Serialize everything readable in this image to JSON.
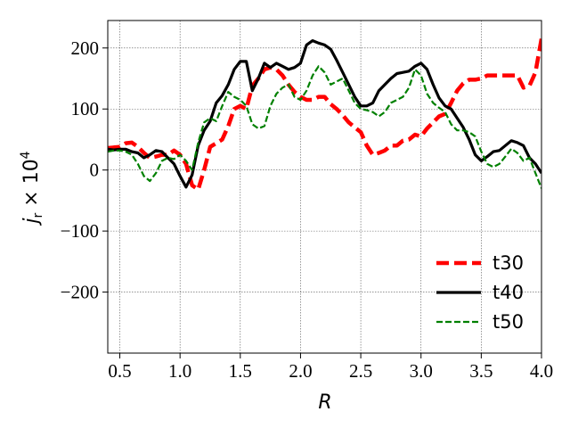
{
  "chart_data": {
    "type": "line",
    "title": "",
    "xlabel": "R",
    "ylabel": "j_r × 10^4",
    "xlim": [
      0.4,
      4.0
    ],
    "ylim": [
      -300,
      245
    ],
    "xticks": [
      0.5,
      1.0,
      1.5,
      2.0,
      2.5,
      3.0,
      3.5,
      4.0
    ],
    "xtick_labels": [
      "0.5",
      "1.0",
      "1.5",
      "2.0",
      "2.5",
      "3.0",
      "3.5",
      "4.0"
    ],
    "yticks": [
      -200,
      -100,
      0,
      100,
      200
    ],
    "ytick_labels": [
      "−200",
      "−100",
      "0",
      "100",
      "200"
    ],
    "grid": true,
    "legend_position": "bottom-right",
    "series": [
      {
        "name": "t30",
        "color": "#ff0000",
        "style": "dashed-thick",
        "points": [
          [
            0.4,
            36
          ],
          [
            0.5,
            38
          ],
          [
            0.55,
            44
          ],
          [
            0.6,
            45
          ],
          [
            0.65,
            38
          ],
          [
            0.7,
            28
          ],
          [
            0.75,
            20
          ],
          [
            0.8,
            22
          ],
          [
            0.85,
            25
          ],
          [
            0.9,
            25
          ],
          [
            0.95,
            32
          ],
          [
            1.0,
            25
          ],
          [
            1.05,
            10
          ],
          [
            1.1,
            -25
          ],
          [
            1.15,
            -32
          ],
          [
            1.2,
            0
          ],
          [
            1.25,
            38
          ],
          [
            1.3,
            44
          ],
          [
            1.35,
            50
          ],
          [
            1.4,
            72
          ],
          [
            1.45,
            100
          ],
          [
            1.5,
            105
          ],
          [
            1.55,
            100
          ],
          [
            1.6,
            138
          ],
          [
            1.65,
            150
          ],
          [
            1.7,
            165
          ],
          [
            1.75,
            168
          ],
          [
            1.8,
            165
          ],
          [
            1.85,
            155
          ],
          [
            1.9,
            140
          ],
          [
            1.95,
            128
          ],
          [
            2.0,
            120
          ],
          [
            2.05,
            115
          ],
          [
            2.1,
            115
          ],
          [
            2.15,
            120
          ],
          [
            2.2,
            120
          ],
          [
            2.25,
            108
          ],
          [
            2.3,
            100
          ],
          [
            2.35,
            90
          ],
          [
            2.4,
            78
          ],
          [
            2.45,
            70
          ],
          [
            2.5,
            62
          ],
          [
            2.55,
            40
          ],
          [
            2.6,
            25
          ],
          [
            2.65,
            28
          ],
          [
            2.7,
            32
          ],
          [
            2.75,
            40
          ],
          [
            2.8,
            40
          ],
          [
            2.85,
            48
          ],
          [
            2.9,
            50
          ],
          [
            2.95,
            58
          ],
          [
            3.0,
            55
          ],
          [
            3.05,
            68
          ],
          [
            3.1,
            78
          ],
          [
            3.15,
            88
          ],
          [
            3.2,
            92
          ],
          [
            3.25,
            110
          ],
          [
            3.3,
            130
          ],
          [
            3.35,
            142
          ],
          [
            3.4,
            148
          ],
          [
            3.45,
            148
          ],
          [
            3.5,
            150
          ],
          [
            3.55,
            155
          ],
          [
            3.6,
            155
          ],
          [
            3.65,
            155
          ],
          [
            3.7,
            155
          ],
          [
            3.75,
            155
          ],
          [
            3.8,
            155
          ],
          [
            3.85,
            135
          ],
          [
            3.9,
            138
          ],
          [
            3.95,
            160
          ],
          [
            4.0,
            215
          ]
        ]
      },
      {
        "name": "t40",
        "color": "#000000",
        "style": "solid-thick",
        "points": [
          [
            0.4,
            34
          ],
          [
            0.45,
            33
          ],
          [
            0.5,
            34
          ],
          [
            0.55,
            34
          ],
          [
            0.6,
            30
          ],
          [
            0.65,
            28
          ],
          [
            0.7,
            20
          ],
          [
            0.75,
            25
          ],
          [
            0.8,
            32
          ],
          [
            0.85,
            30
          ],
          [
            0.9,
            20
          ],
          [
            0.95,
            10
          ],
          [
            1.0,
            -10
          ],
          [
            1.05,
            -28
          ],
          [
            1.1,
            -8
          ],
          [
            1.15,
            40
          ],
          [
            1.2,
            65
          ],
          [
            1.25,
            80
          ],
          [
            1.3,
            110
          ],
          [
            1.35,
            122
          ],
          [
            1.4,
            140
          ],
          [
            1.45,
            165
          ],
          [
            1.5,
            178
          ],
          [
            1.55,
            178
          ],
          [
            1.6,
            130
          ],
          [
            1.65,
            150
          ],
          [
            1.7,
            175
          ],
          [
            1.75,
            168
          ],
          [
            1.8,
            175
          ],
          [
            1.85,
            170
          ],
          [
            1.9,
            165
          ],
          [
            1.95,
            168
          ],
          [
            2.0,
            175
          ],
          [
            2.05,
            205
          ],
          [
            2.1,
            212
          ],
          [
            2.15,
            208
          ],
          [
            2.2,
            205
          ],
          [
            2.25,
            198
          ],
          [
            2.3,
            180
          ],
          [
            2.35,
            160
          ],
          [
            2.4,
            140
          ],
          [
            2.45,
            120
          ],
          [
            2.5,
            105
          ],
          [
            2.55,
            105
          ],
          [
            2.6,
            110
          ],
          [
            2.65,
            130
          ],
          [
            2.7,
            140
          ],
          [
            2.75,
            150
          ],
          [
            2.8,
            158
          ],
          [
            2.85,
            160
          ],
          [
            2.9,
            162
          ],
          [
            2.95,
            170
          ],
          [
            3.0,
            175
          ],
          [
            3.05,
            165
          ],
          [
            3.1,
            140
          ],
          [
            3.15,
            118
          ],
          [
            3.2,
            105
          ],
          [
            3.25,
            100
          ],
          [
            3.3,
            85
          ],
          [
            3.35,
            70
          ],
          [
            3.4,
            50
          ],
          [
            3.45,
            25
          ],
          [
            3.5,
            15
          ],
          [
            3.55,
            22
          ],
          [
            3.6,
            30
          ],
          [
            3.65,
            32
          ],
          [
            3.7,
            40
          ],
          [
            3.75,
            48
          ],
          [
            3.8,
            45
          ],
          [
            3.85,
            40
          ],
          [
            3.9,
            20
          ],
          [
            3.95,
            10
          ],
          [
            4.0,
            -5
          ]
        ]
      },
      {
        "name": "t50",
        "color": "#008000",
        "style": "dashed",
        "points": [
          [
            0.4,
            30
          ],
          [
            0.45,
            32
          ],
          [
            0.5,
            32
          ],
          [
            0.55,
            30
          ],
          [
            0.6,
            25
          ],
          [
            0.65,
            10
          ],
          [
            0.7,
            -10
          ],
          [
            0.75,
            -18
          ],
          [
            0.8,
            -5
          ],
          [
            0.85,
            15
          ],
          [
            0.9,
            20
          ],
          [
            0.95,
            18
          ],
          [
            1.0,
            25
          ],
          [
            1.05,
            15
          ],
          [
            1.1,
            0
          ],
          [
            1.15,
            45
          ],
          [
            1.2,
            78
          ],
          [
            1.25,
            85
          ],
          [
            1.3,
            80
          ],
          [
            1.35,
            105
          ],
          [
            1.4,
            128
          ],
          [
            1.45,
            120
          ],
          [
            1.5,
            115
          ],
          [
            1.55,
            105
          ],
          [
            1.6,
            75
          ],
          [
            1.65,
            68
          ],
          [
            1.7,
            72
          ],
          [
            1.75,
            105
          ],
          [
            1.8,
            125
          ],
          [
            1.85,
            135
          ],
          [
            1.9,
            140
          ],
          [
            1.95,
            120
          ],
          [
            2.0,
            115
          ],
          [
            2.05,
            130
          ],
          [
            2.1,
            155
          ],
          [
            2.15,
            170
          ],
          [
            2.2,
            160
          ],
          [
            2.25,
            140
          ],
          [
            2.3,
            145
          ],
          [
            2.35,
            150
          ],
          [
            2.4,
            130
          ],
          [
            2.45,
            110
          ],
          [
            2.5,
            100
          ],
          [
            2.55,
            98
          ],
          [
            2.6,
            95
          ],
          [
            2.65,
            88
          ],
          [
            2.7,
            95
          ],
          [
            2.75,
            110
          ],
          [
            2.8,
            115
          ],
          [
            2.85,
            120
          ],
          [
            2.9,
            135
          ],
          [
            2.95,
            165
          ],
          [
            3.0,
            155
          ],
          [
            3.05,
            125
          ],
          [
            3.1,
            110
          ],
          [
            3.15,
            102
          ],
          [
            3.2,
            95
          ],
          [
            3.25,
            75
          ],
          [
            3.3,
            65
          ],
          [
            3.35,
            65
          ],
          [
            3.4,
            62
          ],
          [
            3.45,
            55
          ],
          [
            3.5,
            30
          ],
          [
            3.55,
            10
          ],
          [
            3.6,
            5
          ],
          [
            3.65,
            10
          ],
          [
            3.7,
            22
          ],
          [
            3.75,
            35
          ],
          [
            3.8,
            28
          ],
          [
            3.85,
            15
          ],
          [
            3.9,
            20
          ],
          [
            3.95,
            -5
          ],
          [
            4.0,
            -30
          ]
        ]
      }
    ]
  }
}
